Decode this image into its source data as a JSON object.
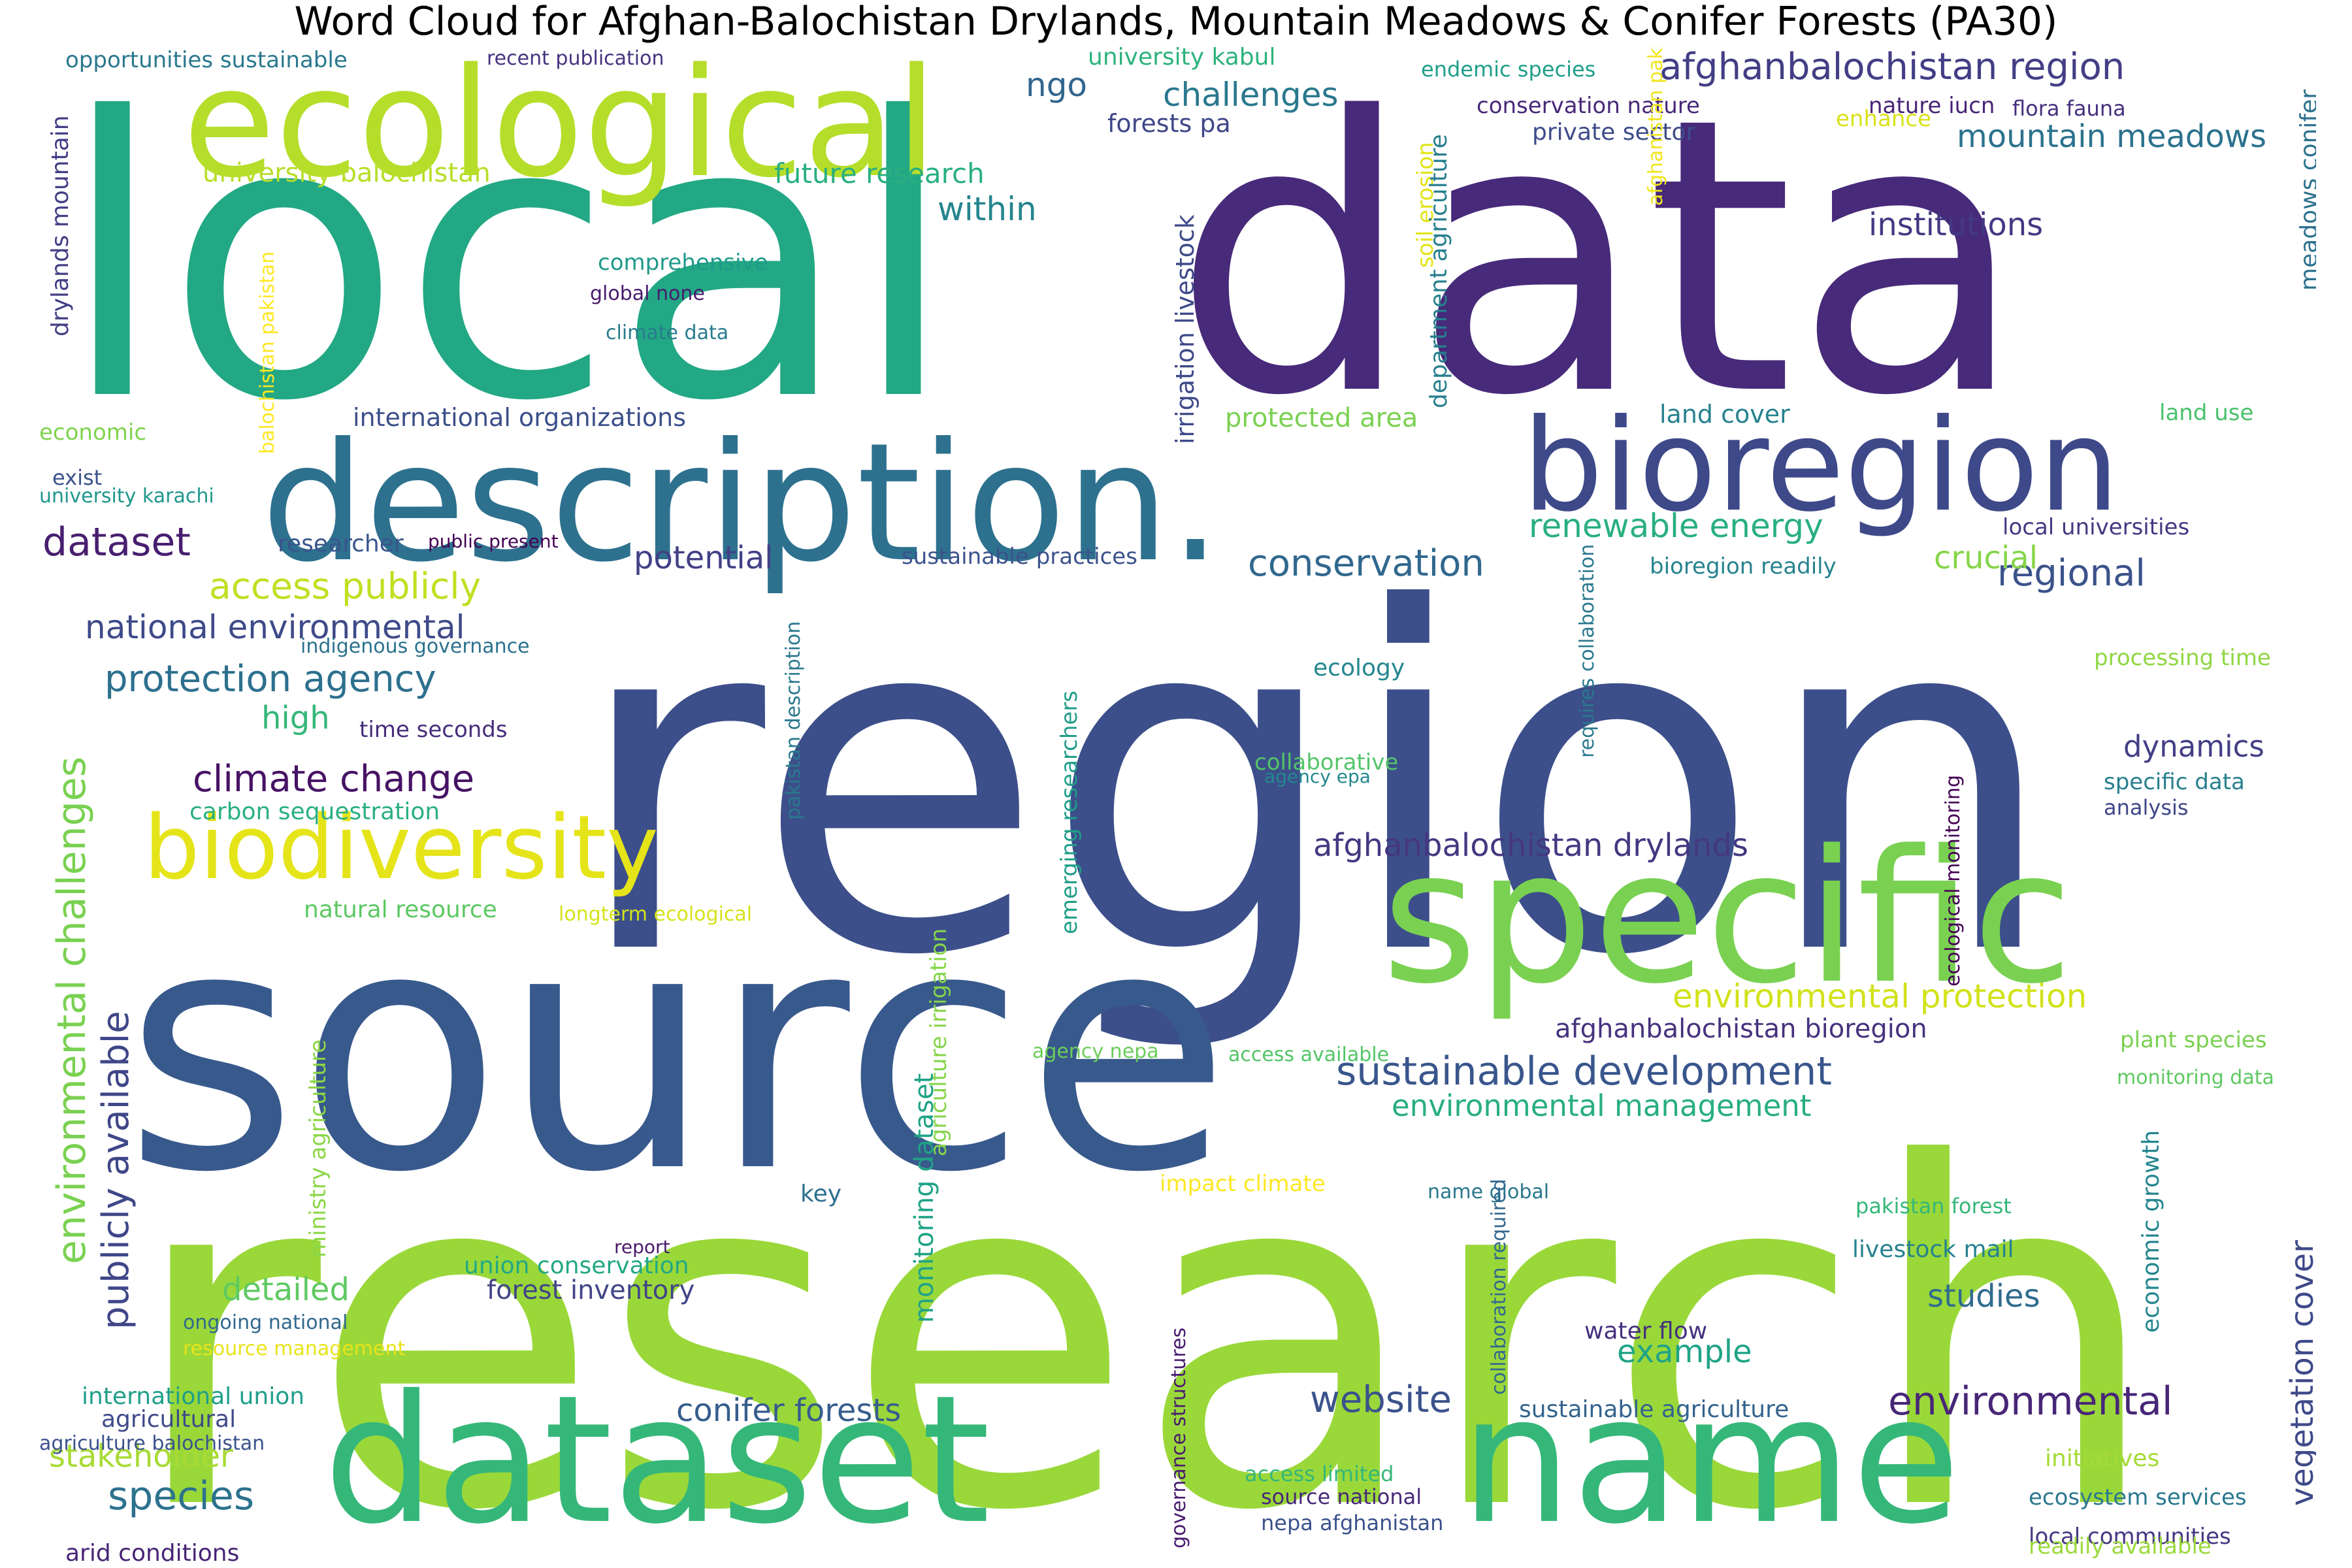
{
  "title": "Word Cloud for Afghan-Balochistan Drylands, Mountain Meadows & Conifer Forests (PA30)",
  "palette": "viridis",
  "background": "#ffffff",
  "words": [
    {
      "text": "research",
      "color": "#9ad83a"
    },
    {
      "text": "region",
      "color": "#3c4f8a"
    },
    {
      "text": "local",
      "color": "#22a884"
    },
    {
      "text": "data",
      "color": "#472a7a"
    },
    {
      "text": "source",
      "color": "#38598c"
    },
    {
      "text": "description.",
      "color": "#2d718e"
    },
    {
      "text": "specific",
      "color": "#7ad151"
    },
    {
      "text": "dataset",
      "color": "#35b779"
    },
    {
      "text": "name",
      "color": "#35b779"
    },
    {
      "text": "ecological",
      "color": "#b5de2b"
    },
    {
      "text": "bioregion",
      "color": "#3e4989"
    },
    {
      "text": "biodiversity",
      "color": "#e5e419"
    },
    {
      "text": "afghanbalochistan region",
      "color": "#433e85"
    },
    {
      "text": "challenges",
      "color": "#2a788e"
    },
    {
      "text": "mountain meadows",
      "color": "#2c728e"
    },
    {
      "text": "institutions",
      "color": "#443983"
    },
    {
      "text": "renewable energy",
      "color": "#29af7f"
    },
    {
      "text": "conservation",
      "color": "#31688e"
    },
    {
      "text": "regional",
      "color": "#3b528b"
    },
    {
      "text": "crucial",
      "color": "#86d549"
    },
    {
      "text": "dataset",
      "color": "#481f70"
    },
    {
      "text": "access publicly",
      "color": "#c2df23"
    },
    {
      "text": "national environmental",
      "color": "#3e4a89"
    },
    {
      "text": "protection agency",
      "color": "#2d708e"
    },
    {
      "text": "climate change",
      "color": "#471365"
    },
    {
      "text": "high",
      "color": "#35b779"
    },
    {
      "text": "potential",
      "color": "#424086"
    },
    {
      "text": "afghanbalochistan drylands",
      "color": "#453781"
    },
    {
      "text": "environmental protection",
      "color": "#d2e21b"
    },
    {
      "text": "sustainable development",
      "color": "#39568c"
    },
    {
      "text": "environmental management",
      "color": "#28ae80"
    },
    {
      "text": "afghanbalochistan bioregion",
      "color": "#46327e"
    },
    {
      "text": "conifer forests",
      "color": "#365d8d"
    },
    {
      "text": "website",
      "color": "#3b528b"
    },
    {
      "text": "environmental",
      "color": "#482677"
    },
    {
      "text": "example",
      "color": "#20a386"
    },
    {
      "text": "studies",
      "color": "#2f6c8e"
    },
    {
      "text": "species",
      "color": "#2c728e"
    },
    {
      "text": "stakeholder",
      "color": "#a8db34"
    },
    {
      "text": "detailed",
      "color": "#5ec962"
    },
    {
      "text": "forest inventory",
      "color": "#414487"
    },
    {
      "text": "dynamics",
      "color": "#433e85"
    },
    {
      "text": "ngo",
      "color": "#31668e"
    },
    {
      "text": "within",
      "color": "#25858e"
    },
    {
      "text": "future research",
      "color": "#29af7f"
    },
    {
      "text": "university balochistan",
      "color": "#b8de29"
    },
    {
      "text": "opportunities sustainable",
      "color": "#2a788e"
    },
    {
      "text": "recent publication",
      "color": "#46337f"
    },
    {
      "text": "university kabul",
      "color": "#2db27d"
    },
    {
      "text": "forests pa",
      "color": "#3f4788"
    },
    {
      "text": "endemic species",
      "color": "#1f9e89"
    },
    {
      "text": "conservation nature",
      "color": "#482878"
    },
    {
      "text": "private sector",
      "color": "#3e4c8a"
    },
    {
      "text": "nature iucn",
      "color": "#482475"
    },
    {
      "text": "flora fauna",
      "color": "#46307e"
    },
    {
      "text": "enhance",
      "color": "#d8e219"
    },
    {
      "text": "comprehensive",
      "color": "#1f998a"
    },
    {
      "text": "global none",
      "color": "#481b6d"
    },
    {
      "text": "climate data",
      "color": "#287c8e"
    },
    {
      "text": "international organizations",
      "color": "#3c4f8a"
    },
    {
      "text": "protected area",
      "color": "#7ad151"
    },
    {
      "text": "land cover",
      "color": "#26828e"
    },
    {
      "text": "land use",
      "color": "#4ac16d"
    },
    {
      "text": "economic",
      "color": "#7fd34e"
    },
    {
      "text": "exist",
      "color": "#3b528b"
    },
    {
      "text": "university karachi",
      "color": "#1f978b"
    },
    {
      "text": "researcher",
      "color": "#3a548c"
    },
    {
      "text": "public present",
      "color": "#440154"
    },
    {
      "text": "sustainable practices",
      "color": "#3b528b"
    },
    {
      "text": "bioregion readily",
      "color": "#25838e"
    },
    {
      "text": "local universities",
      "color": "#453882"
    },
    {
      "text": "indigenous governance",
      "color": "#2c728e"
    },
    {
      "text": "processing time",
      "color": "#90d743"
    },
    {
      "text": "ecology",
      "color": "#24878e"
    },
    {
      "text": "time seconds",
      "color": "#472d7b"
    },
    {
      "text": "collaborative",
      "color": "#54c568"
    },
    {
      "text": "agency epa",
      "color": "#23888e"
    },
    {
      "text": "specific data",
      "color": "#277f8e"
    },
    {
      "text": "analysis",
      "color": "#3f4788"
    },
    {
      "text": "carbon sequestration",
      "color": "#2ab07f"
    },
    {
      "text": "natural resource",
      "color": "#5cc863"
    },
    {
      "text": "longterm ecological",
      "color": "#d5e21a"
    },
    {
      "text": "agency nepa",
      "color": "#6ccd5a"
    },
    {
      "text": "access available",
      "color": "#54c568"
    },
    {
      "text": "plant species",
      "color": "#7ad151"
    },
    {
      "text": "monitoring data",
      "color": "#5ec962"
    },
    {
      "text": "impact climate",
      "color": "#fde725"
    },
    {
      "text": "key",
      "color": "#2d708e"
    },
    {
      "text": "name global",
      "color": "#2a788e"
    },
    {
      "text": "pakistan forest",
      "color": "#35b779"
    },
    {
      "text": "livestock mail",
      "color": "#26828e"
    },
    {
      "text": "report",
      "color": "#481a6c"
    },
    {
      "text": "union conservation",
      "color": "#22a884"
    },
    {
      "text": "ongoing national",
      "color": "#31688e"
    },
    {
      "text": "resource management",
      "color": "#e7e419"
    },
    {
      "text": "international union",
      "color": "#1f9e89"
    },
    {
      "text": "agricultural",
      "color": "#3e4a89"
    },
    {
      "text": "agriculture balochistan",
      "color": "#3b528b"
    },
    {
      "text": "arid conditions",
      "color": "#482475"
    },
    {
      "text": "water flow",
      "color": "#46307e"
    },
    {
      "text": "sustainable agriculture",
      "color": "#33638d"
    },
    {
      "text": "access limited",
      "color": "#35b779"
    },
    {
      "text": "source national",
      "color": "#482878"
    },
    {
      "text": "nepa afghanistan",
      "color": "#3b528b"
    },
    {
      "text": "initiatives",
      "color": "#a5db36"
    },
    {
      "text": "ecosystem services",
      "color": "#2a788e"
    },
    {
      "text": "local communities",
      "color": "#453781"
    },
    {
      "text": "readily available",
      "color": "#9bd93c"
    },
    {
      "text": "drylands mountain",
      "color": "#433e85"
    },
    {
      "text": "balochistan pakistan",
      "color": "#fde725"
    },
    {
      "text": "irrigation livestock",
      "color": "#3e4a89"
    },
    {
      "text": "soil erosion",
      "color": "#e2e418"
    },
    {
      "text": "department agriculture",
      "color": "#277f8e"
    },
    {
      "text": "afghanistan pakistan",
      "color": "#f1e51d"
    },
    {
      "text": "meadows conifer",
      "color": "#2c728e"
    },
    {
      "text": "environmental challenges",
      "color": "#7ad151"
    },
    {
      "text": "publicly available",
      "color": "#3f4788"
    },
    {
      "text": "pakistan description",
      "color": "#2a788e"
    },
    {
      "text": "requires collaboration",
      "color": "#2a788e"
    },
    {
      "text": "ecological monitoring",
      "color": "#440154"
    },
    {
      "text": "emerging researchers",
      "color": "#1f9e89"
    },
    {
      "text": "agriculture irrigation",
      "color": "#86d549"
    },
    {
      "text": "ministry agriculture",
      "color": "#8bd646"
    },
    {
      "text": "monitoring dataset",
      "color": "#20a386"
    },
    {
      "text": "collaboration required",
      "color": "#31688e"
    },
    {
      "text": "governance structures",
      "color": "#481b6d"
    },
    {
      "text": "economic growth",
      "color": "#24868e"
    },
    {
      "text": "vegetation cover",
      "color": "#3e4a89"
    }
  ]
}
